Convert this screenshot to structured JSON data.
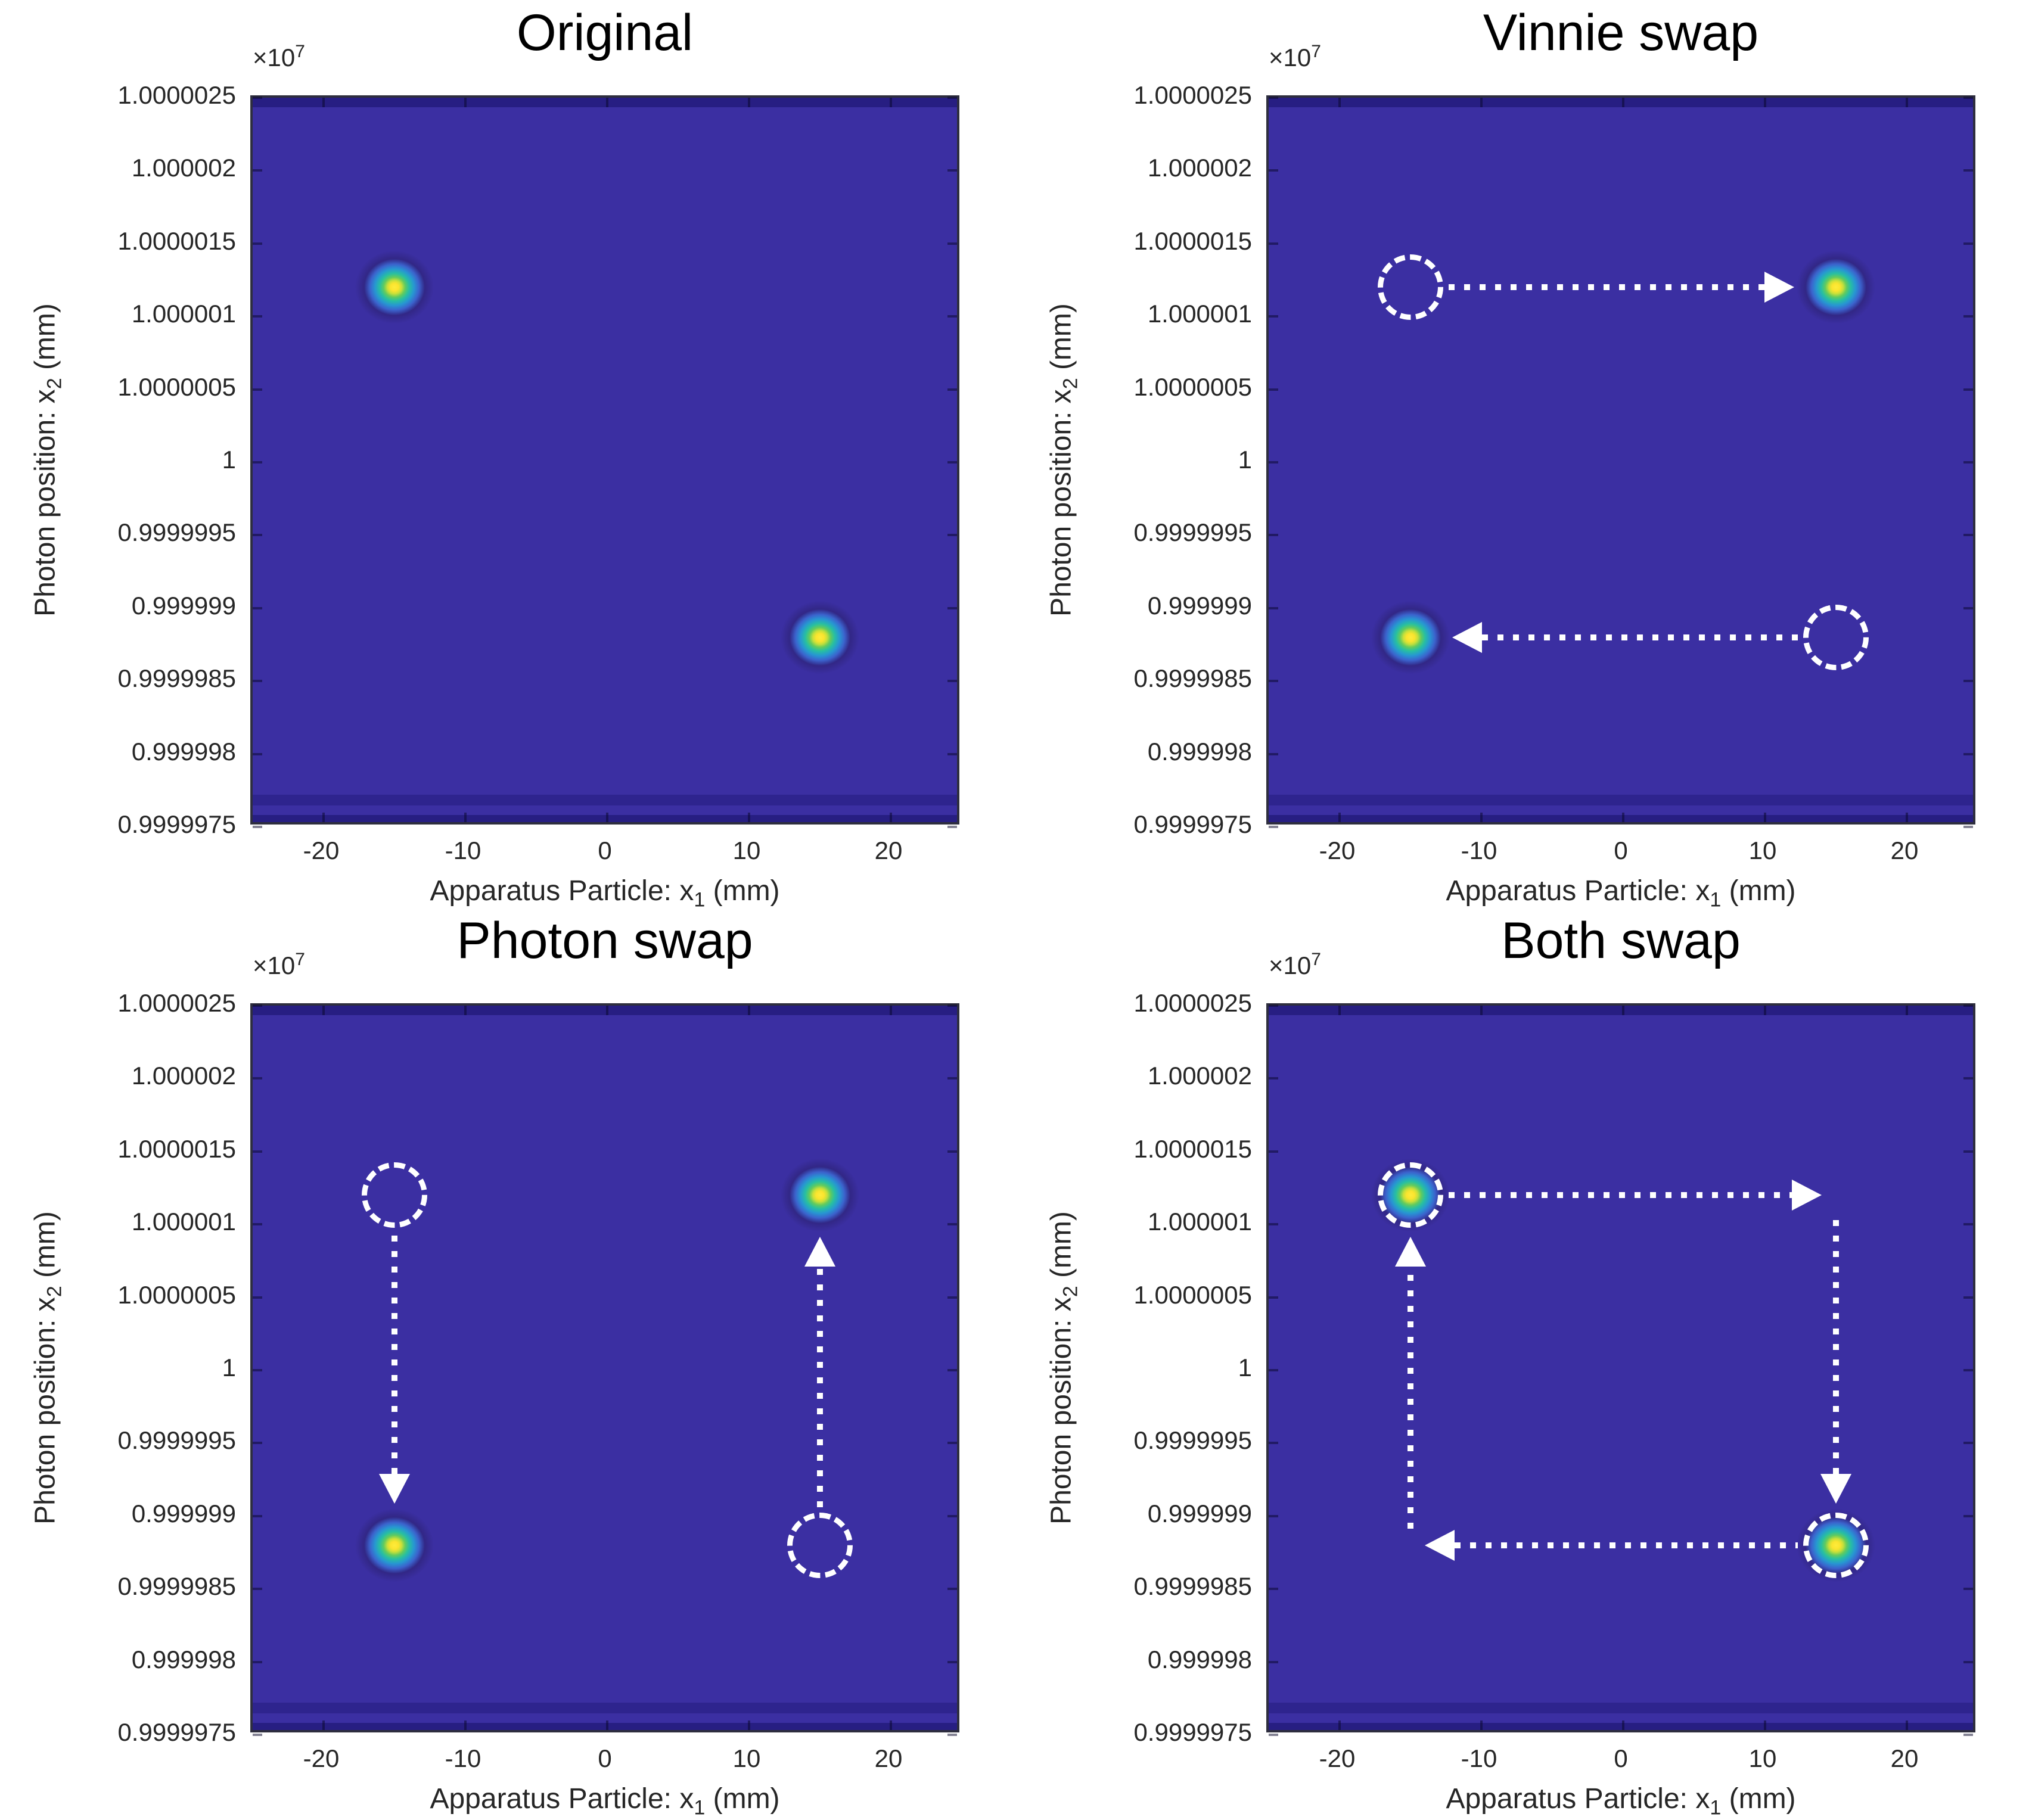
{
  "axes_text": {
    "multiplier_base": "×10",
    "multiplier_exp": "7",
    "y_prefix": "Photon position: x",
    "y_sub": "2",
    "y_suffix": " (mm)",
    "x_prefix": "Apparatus Particle: x",
    "x_sub": "1",
    "x_suffix": " (mm)",
    "y_tick_labels": [
      "1.0000025",
      "1.000002",
      "1.0000015",
      "1.000001",
      "1.0000005",
      "1",
      "0.9999995",
      "0.999999",
      "0.9999985",
      "0.999998",
      "0.9999975"
    ],
    "x_tick_labels": [
      "-20",
      "-10",
      "0",
      "10",
      "20"
    ]
  },
  "colors": {
    "page_bg": "#ffffff",
    "plot_bg": "#3b2fa2",
    "pcolor_band": "rgba(16,10,90,0.45)",
    "pcolor_band_faint": "rgba(16,10,90,0.28)",
    "axis_frame": "#2e2e3e",
    "tick_notch": "rgba(8,6,40,0.5)",
    "text": "#262626",
    "title_text": "#000000",
    "annotation": "#ffffff",
    "blob_gradient": [
      [
        "#fdec3c",
        "0%"
      ],
      [
        "#fbe42e",
        "9%"
      ],
      [
        "#c8e03a",
        "16%"
      ],
      [
        "#62cb5e",
        "24%"
      ],
      [
        "#27bfa2",
        "33%"
      ],
      [
        "#2796d2",
        "44%"
      ],
      [
        "#3b63cd",
        "55%"
      ],
      [
        "#322786",
        "68%"
      ],
      [
        "rgba(50,39,134,0)",
        "88%"
      ]
    ]
  },
  "chart_data": [
    {
      "type": "heatmap",
      "title": "Original",
      "xlabel": "Apparatus Particle: x_1 (mm)",
      "ylabel": "Photon position: x_2 (mm)",
      "y_multiplier": "1e7",
      "xlim": [
        -25,
        25
      ],
      "ylim": [
        0.9999975,
        1.0000025
      ],
      "x_ticks": [
        -20,
        -10,
        0,
        10,
        20
      ],
      "y_ticks": [
        1.0000025,
        1.000002,
        1.0000015,
        1.000001,
        1.0000005,
        1,
        0.9999995,
        0.999999,
        0.9999985,
        0.999998,
        0.9999975
      ],
      "peaks": [
        {
          "x1": -15,
          "x2": 1.0000012
        },
        {
          "x1": 15,
          "x2": 0.9999988
        }
      ],
      "annotations": []
    },
    {
      "type": "heatmap",
      "title": "Vinnie swap",
      "xlabel": "Apparatus Particle: x_1 (mm)",
      "ylabel": "Photon position: x_2 (mm)",
      "y_multiplier": "1e7",
      "xlim": [
        -25,
        25
      ],
      "ylim": [
        0.9999975,
        1.0000025
      ],
      "x_ticks": [
        -20,
        -10,
        0,
        10,
        20
      ],
      "y_ticks": [
        1.0000025,
        1.000002,
        1.0000015,
        1.000001,
        1.0000005,
        1,
        0.9999995,
        0.999999,
        0.9999985,
        0.999998,
        0.9999975
      ],
      "peaks": [
        {
          "x1": 15,
          "x2": 1.0000012
        },
        {
          "x1": -15,
          "x2": 0.9999988
        }
      ],
      "annotations": [
        {
          "kind": "dashed-circle",
          "at": [
            -15,
            1.0000012
          ]
        },
        {
          "kind": "dashed-circle",
          "at": [
            15,
            0.9999988
          ]
        },
        {
          "kind": "dotted-arrow",
          "from": [
            -15,
            1.0000012
          ],
          "to": [
            15,
            1.0000012
          ],
          "direction": "right",
          "from_type": "circle",
          "to_type": "spot"
        },
        {
          "kind": "dotted-arrow",
          "from": [
            15,
            0.9999988
          ],
          "to": [
            -15,
            0.9999988
          ],
          "direction": "left",
          "from_type": "circle",
          "to_type": "spot"
        }
      ]
    },
    {
      "type": "heatmap",
      "title": "Photon swap",
      "xlabel": "Apparatus Particle: x_1 (mm)",
      "ylabel": "Photon position: x_2 (mm)",
      "y_multiplier": "1e7",
      "xlim": [
        -25,
        25
      ],
      "ylim": [
        0.9999975,
        1.0000025
      ],
      "x_ticks": [
        -20,
        -10,
        0,
        10,
        20
      ],
      "y_ticks": [
        1.0000025,
        1.000002,
        1.0000015,
        1.000001,
        1.0000005,
        1,
        0.9999995,
        0.999999,
        0.9999985,
        0.999998,
        0.9999975
      ],
      "peaks": [
        {
          "x1": 15,
          "x2": 1.0000012
        },
        {
          "x1": -15,
          "x2": 0.9999988
        }
      ],
      "annotations": [
        {
          "kind": "dashed-circle",
          "at": [
            -15,
            1.0000012
          ]
        },
        {
          "kind": "dashed-circle",
          "at": [
            15,
            0.9999988
          ]
        },
        {
          "kind": "dotted-arrow",
          "from": [
            -15,
            1.0000012
          ],
          "to": [
            -15,
            0.9999988
          ],
          "direction": "down",
          "from_type": "circle",
          "to_type": "spot"
        },
        {
          "kind": "dotted-arrow",
          "from": [
            15,
            0.9999988
          ],
          "to": [
            15,
            1.0000012
          ],
          "direction": "up",
          "from_type": "circle",
          "to_type": "spot"
        }
      ]
    },
    {
      "type": "heatmap",
      "title": "Both swap",
      "xlabel": "Apparatus Particle: x_1 (mm)",
      "ylabel": "Photon position: x_2 (mm)",
      "y_multiplier": "1e7",
      "xlim": [
        -25,
        25
      ],
      "ylim": [
        0.9999975,
        1.0000025
      ],
      "x_ticks": [
        -20,
        -10,
        0,
        10,
        20
      ],
      "y_ticks": [
        1.0000025,
        1.000002,
        1.0000015,
        1.000001,
        1.0000005,
        1,
        0.9999995,
        0.999999,
        0.9999985,
        0.999998,
        0.9999975
      ],
      "peaks": [
        {
          "x1": -15,
          "x2": 1.0000012
        },
        {
          "x1": 15,
          "x2": 0.9999988
        }
      ],
      "annotations": [
        {
          "kind": "dashed-circle",
          "at": [
            -15,
            1.0000012
          ]
        },
        {
          "kind": "dashed-circle",
          "at": [
            15,
            0.9999988
          ]
        },
        {
          "kind": "dotted-arrow",
          "from": [
            -15,
            1.0000012
          ],
          "to": [
            15,
            1.0000012
          ],
          "direction": "right",
          "from_type": "circle",
          "to_type": "corner"
        },
        {
          "kind": "dotted-arrow",
          "from": [
            15,
            1.0000012
          ],
          "to": [
            15,
            0.9999988
          ],
          "direction": "down",
          "from_type": "corner",
          "to_type": "circle"
        },
        {
          "kind": "dotted-arrow",
          "from": [
            15,
            0.9999988
          ],
          "to": [
            -15,
            0.9999988
          ],
          "direction": "left",
          "from_type": "circle",
          "to_type": "corner"
        },
        {
          "kind": "dotted-arrow",
          "from": [
            -15,
            0.9999988
          ],
          "to": [
            -15,
            1.0000012
          ],
          "direction": "up",
          "from_type": "corner",
          "to_type": "circle"
        }
      ]
    }
  ]
}
